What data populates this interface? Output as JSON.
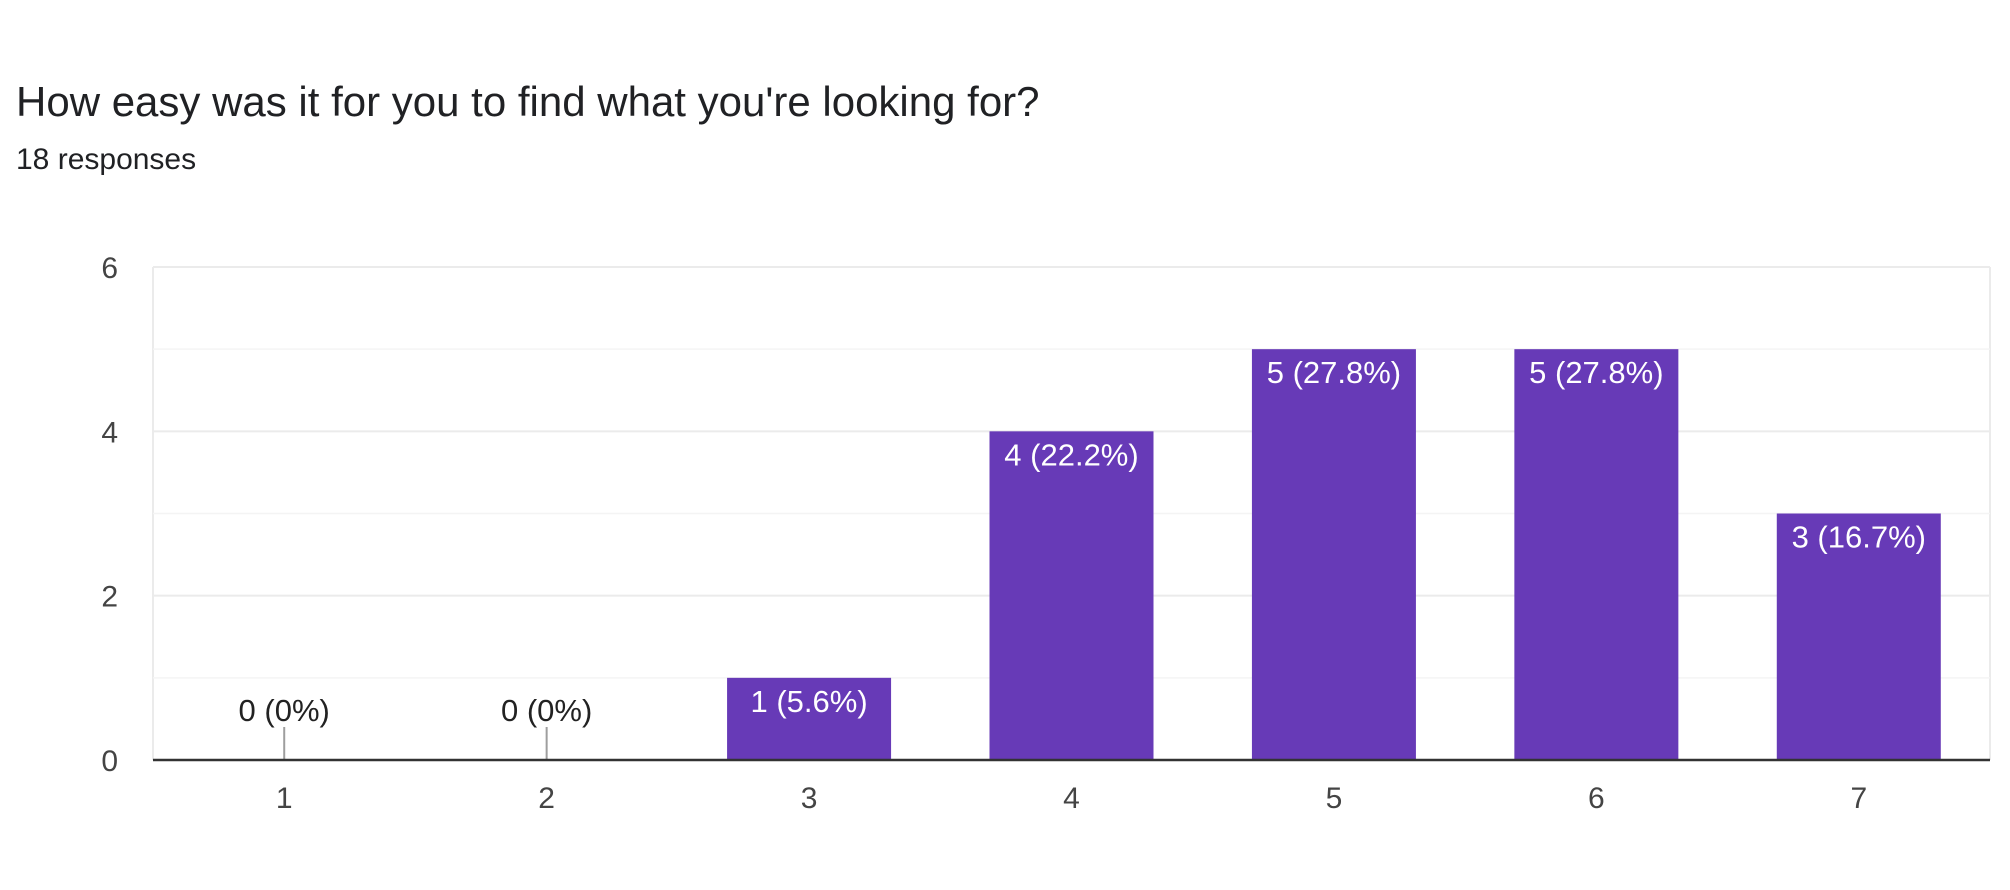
{
  "question": {
    "title": "How easy was it for you to find what you're looking for?",
    "responses": "18 responses"
  },
  "colors": {
    "bar": "#673ab7",
    "grid": "#ebebeb",
    "axis": "#333333",
    "zero_tick": "#9e9e9e"
  },
  "chart_data": {
    "type": "bar",
    "categories": [
      "1",
      "2",
      "3",
      "4",
      "5",
      "6",
      "7"
    ],
    "values": [
      0,
      0,
      1,
      4,
      5,
      5,
      3
    ],
    "data_labels": [
      "0 (0%)",
      "0 (0%)",
      "1 (5.6%)",
      "4 (22.2%)",
      "5 (27.8%)",
      "5 (27.8%)",
      "3 (16.7%)"
    ],
    "y_ticks": [
      "0",
      "2",
      "4",
      "6"
    ],
    "ylim": [
      0,
      6
    ],
    "grid": true,
    "legend": "none"
  }
}
